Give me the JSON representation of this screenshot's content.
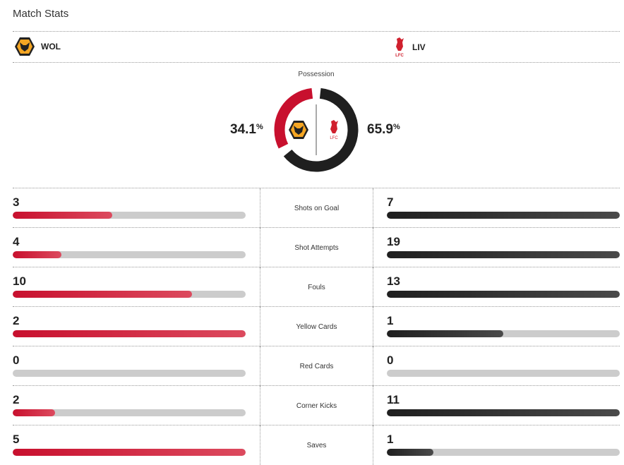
{
  "header": {
    "title": "Match Stats"
  },
  "home": {
    "abbr": "WOL",
    "possession": "34.1",
    "color": "#c8102e",
    "logo": "wolves-crest-icon"
  },
  "away": {
    "abbr": "LIV",
    "possession": "65.9",
    "color": "#1f1f1f",
    "logo": "liverbird-crest-icon",
    "logo_text": "LFC"
  },
  "possession_label": "Possession",
  "pct_symbol": "%",
  "stats": [
    {
      "label": "Shots on Goal",
      "home": "3",
      "away": "7"
    },
    {
      "label": "Shot Attempts",
      "home": "4",
      "away": "19"
    },
    {
      "label": "Fouls",
      "home": "10",
      "away": "13"
    },
    {
      "label": "Yellow Cards",
      "home": "2",
      "away": "1"
    },
    {
      "label": "Red Cards",
      "home": "0",
      "away": "0"
    },
    {
      "label": "Corner Kicks",
      "home": "2",
      "away": "11"
    },
    {
      "label": "Saves",
      "home": "5",
      "away": "1"
    }
  ]
}
